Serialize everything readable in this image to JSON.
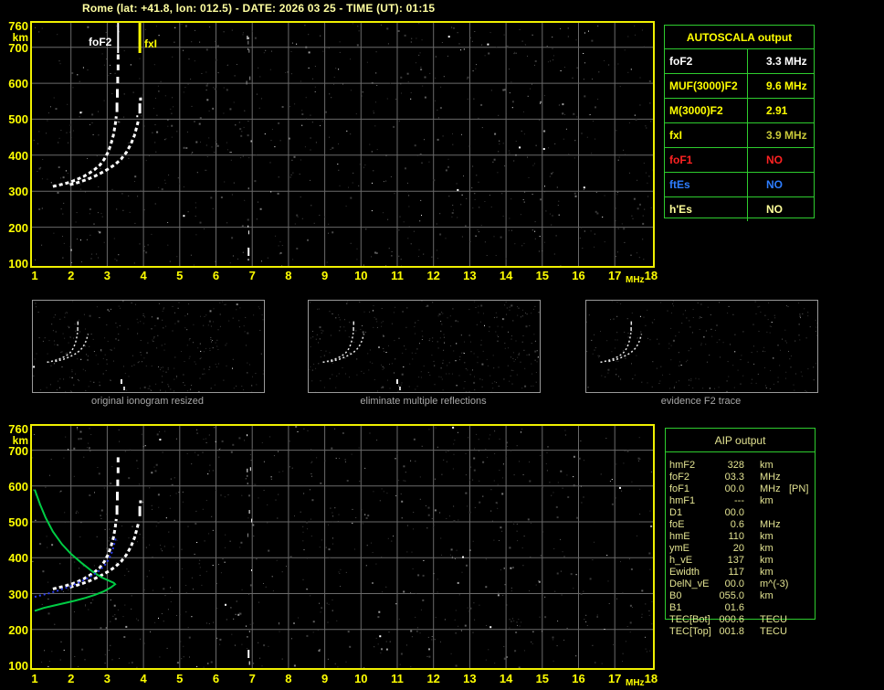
{
  "title": "Rome (lat: +41.8, lon: 012.5) - DATE: 2026 03 25 - TIME (UT): 01:15",
  "colors": {
    "accent_yellow": "#ffff00",
    "border_yellow": "#f0f000",
    "table_green": "#2ecc2e",
    "white": "#ffffff",
    "pale_yellow": "#ffff9a",
    "olive_value": "#c8c838",
    "alert_red": "#ff2222",
    "es_blue": "#2d7dff",
    "aip_text": "#e2e291",
    "grid_gray": "#6a6a6a",
    "caption_gray": "#a8a8a8",
    "trace_white": "#ffffff",
    "profile_green": "#00cc44",
    "fit_blue": "#2b3bf0"
  },
  "axes": {
    "x_ticks": [
      "1",
      "2",
      "3",
      "4",
      "5",
      "6",
      "7",
      "8",
      "9",
      "10",
      "11",
      "12",
      "13",
      "14",
      "15",
      "16",
      "17",
      "18"
    ],
    "x_unit": "MHz",
    "y_ticks": [
      "760",
      "700",
      "600",
      "500",
      "400",
      "300",
      "200",
      "100"
    ],
    "y_unit": "km"
  },
  "main_plot": {
    "foF2_label": "foF2",
    "fxI_label": "fxI"
  },
  "thumbnails": [
    {
      "caption": "original ionogram resized"
    },
    {
      "caption": "eliminate multiple reflections"
    },
    {
      "caption": "evidence F2 trace"
    }
  ],
  "autoscala": {
    "title": "AUTOSCALA output",
    "rows": [
      {
        "label": "foF2",
        "value": "3.3 MHz",
        "label_color": "#ffffff",
        "value_color": "#ffffff"
      },
      {
        "label": "MUF(3000)F2",
        "value": "9.6 MHz",
        "label_color": "#ffff00",
        "value_color": "#ffff00"
      },
      {
        "label": "M(3000)F2",
        "value": "2.91",
        "label_color": "#ffff00",
        "value_color": "#ffff00"
      },
      {
        "label": "fxI",
        "value": "3.9 MHz",
        "label_color": "#ffff00",
        "value_color": "#c8c838"
      },
      {
        "label": "foF1",
        "value": "NO",
        "label_color": "#ff2222",
        "value_color": "#ff2222"
      },
      {
        "label": "ftEs",
        "value": "NO",
        "label_color": "#2d7dff",
        "value_color": "#2d7dff"
      },
      {
        "label": "h'Es",
        "value": "NO",
        "label_color": "#ffff9a",
        "value_color": "#ffff9a"
      }
    ]
  },
  "aip": {
    "title": "AIP output",
    "rows": [
      {
        "label": "hmF2",
        "value": "328",
        "unit": "km",
        "extra": ""
      },
      {
        "label": "foF2",
        "value": "03.3",
        "unit": "MHz",
        "extra": ""
      },
      {
        "label": "foF1",
        "value": "00.0",
        "unit": "MHz",
        "extra": "[PN]"
      },
      {
        "label": "hmF1",
        "value": "---",
        "unit": "km",
        "extra": ""
      },
      {
        "label": "D1",
        "value": "00.0",
        "unit": "",
        "extra": ""
      },
      {
        "label": "foE",
        "value": "0.6",
        "unit": "MHz",
        "extra": ""
      },
      {
        "label": "hmE",
        "value": "110",
        "unit": "km",
        "extra": ""
      },
      {
        "label": "ymE",
        "value": "20",
        "unit": "km",
        "extra": ""
      },
      {
        "label": "h_vE",
        "value": "137",
        "unit": "km",
        "extra": ""
      },
      {
        "label": "Ewidth",
        "value": "117",
        "unit": "km",
        "extra": ""
      },
      {
        "label": "DelN_vE",
        "value": "00.0",
        "unit": "m^(-3)",
        "extra": ""
      },
      {
        "label": "B0",
        "value": "055.0",
        "unit": "km",
        "extra": ""
      },
      {
        "label": "B1",
        "value": "01.6",
        "unit": "",
        "extra": ""
      },
      {
        "label": "TEC[Bot]",
        "value": "000.6",
        "unit": "TECU",
        "extra": ""
      },
      {
        "label": "TEC[Top]",
        "value": "001.8",
        "unit": "TECU",
        "extra": ""
      }
    ]
  },
  "chart_data": [
    {
      "type": "scatter",
      "id": "ionogram",
      "title": "Rome ionogram 2026-03-25 01:15 UT",
      "xlabel": "MHz",
      "ylabel": "km",
      "xlim": [
        1,
        18
      ],
      "ylim": [
        100,
        760
      ],
      "grid": true,
      "markers": {
        "foF2_MHz": 3.3,
        "fxI_MHz": 3.9
      },
      "series": [
        {
          "name": "O-trace",
          "points": [
            [
              1.5,
              313
            ],
            [
              1.62,
              316
            ],
            [
              1.75,
              319
            ],
            [
              1.9,
              323
            ],
            [
              2.05,
              328
            ],
            [
              2.2,
              334
            ],
            [
              2.35,
              341
            ],
            [
              2.5,
              350
            ],
            [
              2.65,
              360
            ],
            [
              2.8,
              373
            ],
            [
              2.92,
              389
            ],
            [
              3.02,
              408
            ],
            [
              3.1,
              430
            ],
            [
              3.17,
              455
            ],
            [
              3.22,
              483
            ],
            [
              3.25,
              508
            ]
          ]
        },
        {
          "name": "X-trace",
          "points": [
            [
              1.97,
              318
            ],
            [
              2.12,
              322
            ],
            [
              2.28,
              327
            ],
            [
              2.45,
              333
            ],
            [
              2.62,
              340
            ],
            [
              2.8,
              349
            ],
            [
              3.0,
              360
            ],
            [
              3.2,
              373
            ],
            [
              3.38,
              389
            ],
            [
              3.53,
              408
            ],
            [
              3.65,
              430
            ],
            [
              3.75,
              455
            ],
            [
              3.82,
              481
            ],
            [
              3.87,
              500
            ]
          ]
        }
      ],
      "o_dashes": [
        [
          3.27,
          520,
          546
        ],
        [
          3.28,
          560,
          584
        ],
        [
          3.29,
          600,
          618
        ],
        [
          3.3,
          636,
          652
        ],
        [
          3.3,
          666,
          680
        ]
      ],
      "x_dashes": [
        [
          3.9,
          516,
          544
        ],
        [
          3.92,
          552,
          560
        ]
      ]
    },
    {
      "type": "line",
      "id": "profile",
      "title": "AIP electron density profile and fitted trace",
      "xlim": [
        1,
        18
      ],
      "ylim": [
        100,
        760
      ],
      "series": [
        {
          "name": "electron-density-profile",
          "color_key": "profile_green",
          "points": [
            [
              1.0,
              590
            ],
            [
              1.15,
              548
            ],
            [
              1.3,
              512
            ],
            [
              1.5,
              473
            ],
            [
              1.75,
              438
            ],
            [
              2.0,
              411
            ],
            [
              2.3,
              385
            ],
            [
              2.6,
              361
            ],
            [
              2.85,
              345
            ],
            [
              3.05,
              336
            ],
            [
              3.18,
              330
            ],
            [
              3.22,
              326
            ],
            [
              3.1,
              317
            ],
            [
              2.9,
              306
            ],
            [
              2.65,
              296
            ],
            [
              2.4,
              288
            ],
            [
              2.1,
              280
            ],
            [
              1.8,
              273
            ],
            [
              1.5,
              266
            ],
            [
              1.25,
              260
            ],
            [
              1.0,
              252
            ]
          ]
        },
        {
          "name": "autoscala-fitted-trace",
          "color_key": "fit_blue",
          "points": [
            [
              1.0,
              291
            ],
            [
              1.2,
              296
            ],
            [
              1.4,
              301
            ],
            [
              1.6,
              307
            ],
            [
              1.8,
              314
            ],
            [
              2.0,
              321
            ],
            [
              2.2,
              330
            ],
            [
              2.4,
              340
            ],
            [
              2.6,
              351
            ],
            [
              2.78,
              364
            ],
            [
              2.93,
              379
            ],
            [
              3.05,
              397
            ],
            [
              3.14,
              418
            ],
            [
              3.2,
              440
            ],
            [
              3.25,
              460
            ]
          ]
        }
      ]
    }
  ]
}
